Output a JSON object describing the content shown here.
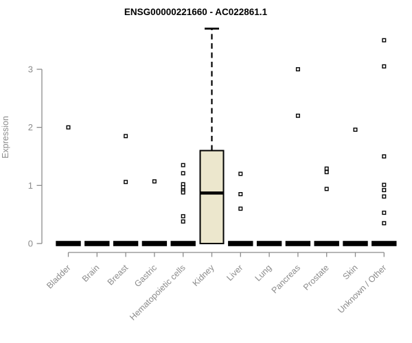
{
  "title": "ENSG00000221660 - AC022861.1",
  "ylabel": "Expression",
  "chart_data": {
    "type": "boxplot",
    "title": "ENSG00000221660 - AC022861.1",
    "xlabel": "",
    "ylabel": "Expression",
    "ylim": [
      0,
      3.75
    ],
    "yticks": [
      0,
      1,
      2,
      3
    ],
    "grid": false,
    "legend": "none",
    "x_tick_label_rotation_deg": 45,
    "colors": {
      "box_fill": "#ECE7CD",
      "box_border": "#000000",
      "median": "#000000",
      "axis": "#8B8B8B",
      "tick_label": "#8B8B8B",
      "title": "#000000",
      "point_stroke": "#000000",
      "point_fill": "#FFFFFF"
    },
    "point_style": "open-square",
    "categories": [
      "Bladder",
      "Brain",
      "Breast",
      "Gastric",
      "Hematopoietic cells",
      "Kidney",
      "Liver",
      "Lung",
      "Pancreas",
      "Prostate",
      "Skin",
      "Unknown / Other"
    ],
    "boxes": [
      {
        "category": "Bladder",
        "q1": 0,
        "median": 0,
        "q3": 0,
        "whisker_low": 0,
        "whisker_high": 0,
        "points": [
          2.0
        ]
      },
      {
        "category": "Brain",
        "q1": 0,
        "median": 0,
        "q3": 0,
        "whisker_low": 0,
        "whisker_high": 0,
        "points": []
      },
      {
        "category": "Breast",
        "q1": 0,
        "median": 0,
        "q3": 0,
        "whisker_low": 0,
        "whisker_high": 0,
        "points": [
          1.85,
          1.06
        ]
      },
      {
        "category": "Gastric",
        "q1": 0,
        "median": 0,
        "q3": 0,
        "whisker_low": 0,
        "whisker_high": 0,
        "points": [
          1.07
        ]
      },
      {
        "category": "Hematopoietic cells",
        "q1": 0,
        "median": 0,
        "q3": 0,
        "whisker_low": 0,
        "whisker_high": 0,
        "points": [
          1.35,
          1.21,
          1.02,
          0.97,
          0.91,
          0.88,
          0.47,
          0.38
        ]
      },
      {
        "category": "Kidney",
        "q1": 0,
        "median": 0.87,
        "q3": 1.6,
        "whisker_low": 0,
        "whisker_high": 3.7,
        "points": []
      },
      {
        "category": "Liver",
        "q1": 0,
        "median": 0,
        "q3": 0,
        "whisker_low": 0,
        "whisker_high": 0,
        "points": [
          1.2,
          0.85,
          0.6
        ]
      },
      {
        "category": "Lung",
        "q1": 0,
        "median": 0,
        "q3": 0,
        "whisker_low": 0,
        "whisker_high": 0,
        "points": []
      },
      {
        "category": "Pancreas",
        "q1": 0,
        "median": 0,
        "q3": 0,
        "whisker_low": 0,
        "whisker_high": 0,
        "points": [
          3.0,
          2.2
        ]
      },
      {
        "category": "Prostate",
        "q1": 0,
        "median": 0,
        "q3": 0,
        "whisker_low": 0,
        "whisker_high": 0,
        "points": [
          1.29,
          1.23,
          0.94
        ]
      },
      {
        "category": "Skin",
        "q1": 0,
        "median": 0,
        "q3": 0,
        "whisker_low": 0,
        "whisker_high": 0,
        "points": [
          1.96
        ]
      },
      {
        "category": "Unknown / Other",
        "q1": 0,
        "median": 0,
        "q3": 0,
        "whisker_low": 0,
        "whisker_high": 0,
        "points": [
          3.5,
          3.05,
          1.5,
          1.01,
          0.92,
          0.81,
          0.53,
          0.35
        ]
      }
    ]
  }
}
